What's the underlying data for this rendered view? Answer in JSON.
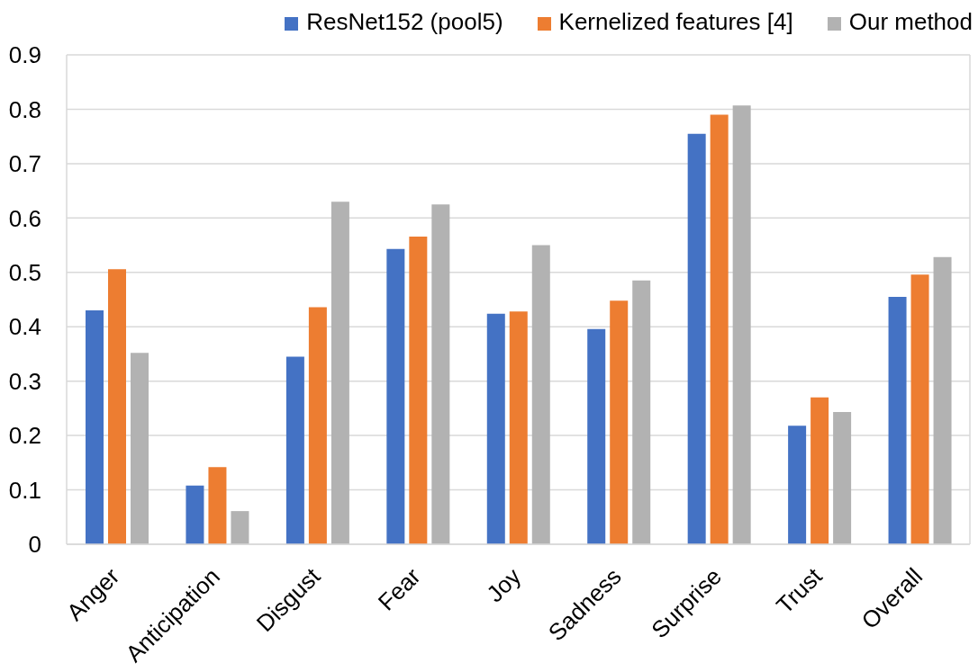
{
  "chart_data": {
    "type": "bar",
    "categories": [
      "Anger",
      "Anticipation",
      "Disgust",
      "Fear",
      "Joy",
      "Sadness",
      "Surprise",
      "Trust",
      "Overall"
    ],
    "series": [
      {
        "name": "ResNet152 (pool5)",
        "color": "#4472c4",
        "values": [
          0.43,
          0.108,
          0.345,
          0.543,
          0.424,
          0.396,
          0.755,
          0.218,
          0.455
        ]
      },
      {
        "name": "Kernelized features [4]",
        "color": "#ed7d31",
        "values": [
          0.506,
          0.142,
          0.436,
          0.566,
          0.428,
          0.448,
          0.79,
          0.27,
          0.496
        ]
      },
      {
        "name": "Our method",
        "color": "#b2b2b2",
        "values": [
          0.352,
          0.061,
          0.63,
          0.625,
          0.55,
          0.485,
          0.807,
          0.243,
          0.528
        ]
      }
    ],
    "ylim": [
      0,
      0.9
    ],
    "yticks": [
      0,
      0.1,
      0.2,
      0.3,
      0.4,
      0.5,
      0.6,
      0.7,
      0.8,
      0.9
    ],
    "grid": "y",
    "legend": "top right"
  }
}
